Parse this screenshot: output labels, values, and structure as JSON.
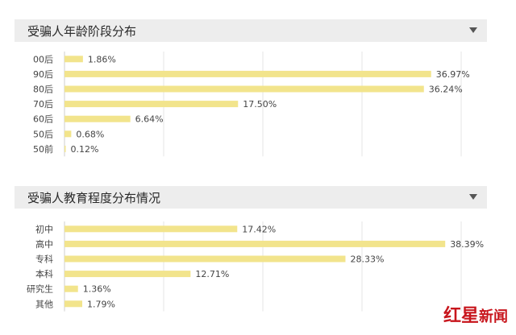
{
  "panels": [
    {
      "title": "受骗人年龄阶段分布",
      "icon": "caret-down-icon"
    },
    {
      "title": "受骗人教育程度分布情况",
      "icon": "caret-down-icon"
    }
  ],
  "watermark": {
    "main": "红星",
    "sub": "新闻"
  },
  "colors": {
    "bar": "#f2e48c",
    "header": "#ededed",
    "watermark": "#c8161d"
  },
  "chart_data": [
    {
      "type": "bar",
      "orientation": "horizontal",
      "title": "受骗人年龄阶段分布",
      "categories": [
        "00后",
        "90后",
        "80后",
        "70后",
        "60后",
        "50后",
        "50前"
      ],
      "values": [
        1.86,
        36.97,
        36.24,
        17.5,
        6.64,
        0.68,
        0.12
      ],
      "data_labels": [
        "1.86%",
        "36.97%",
        "36.24%",
        "17.50%",
        "6.64%",
        "0.68%",
        "0.12%"
      ],
      "xlim": [
        0,
        40
      ],
      "grid": true
    },
    {
      "type": "bar",
      "orientation": "horizontal",
      "title": "受骗人教育程度分布情况",
      "categories": [
        "初中",
        "高中",
        "专科",
        "本科",
        "研究生",
        "其他"
      ],
      "values": [
        17.42,
        38.39,
        28.33,
        12.71,
        1.36,
        1.79
      ],
      "data_labels": [
        "17.42%",
        "38.39%",
        "28.33%",
        "12.71%",
        "1.36%",
        "1.79%"
      ],
      "xlim": [
        0,
        40
      ],
      "grid": true
    }
  ]
}
